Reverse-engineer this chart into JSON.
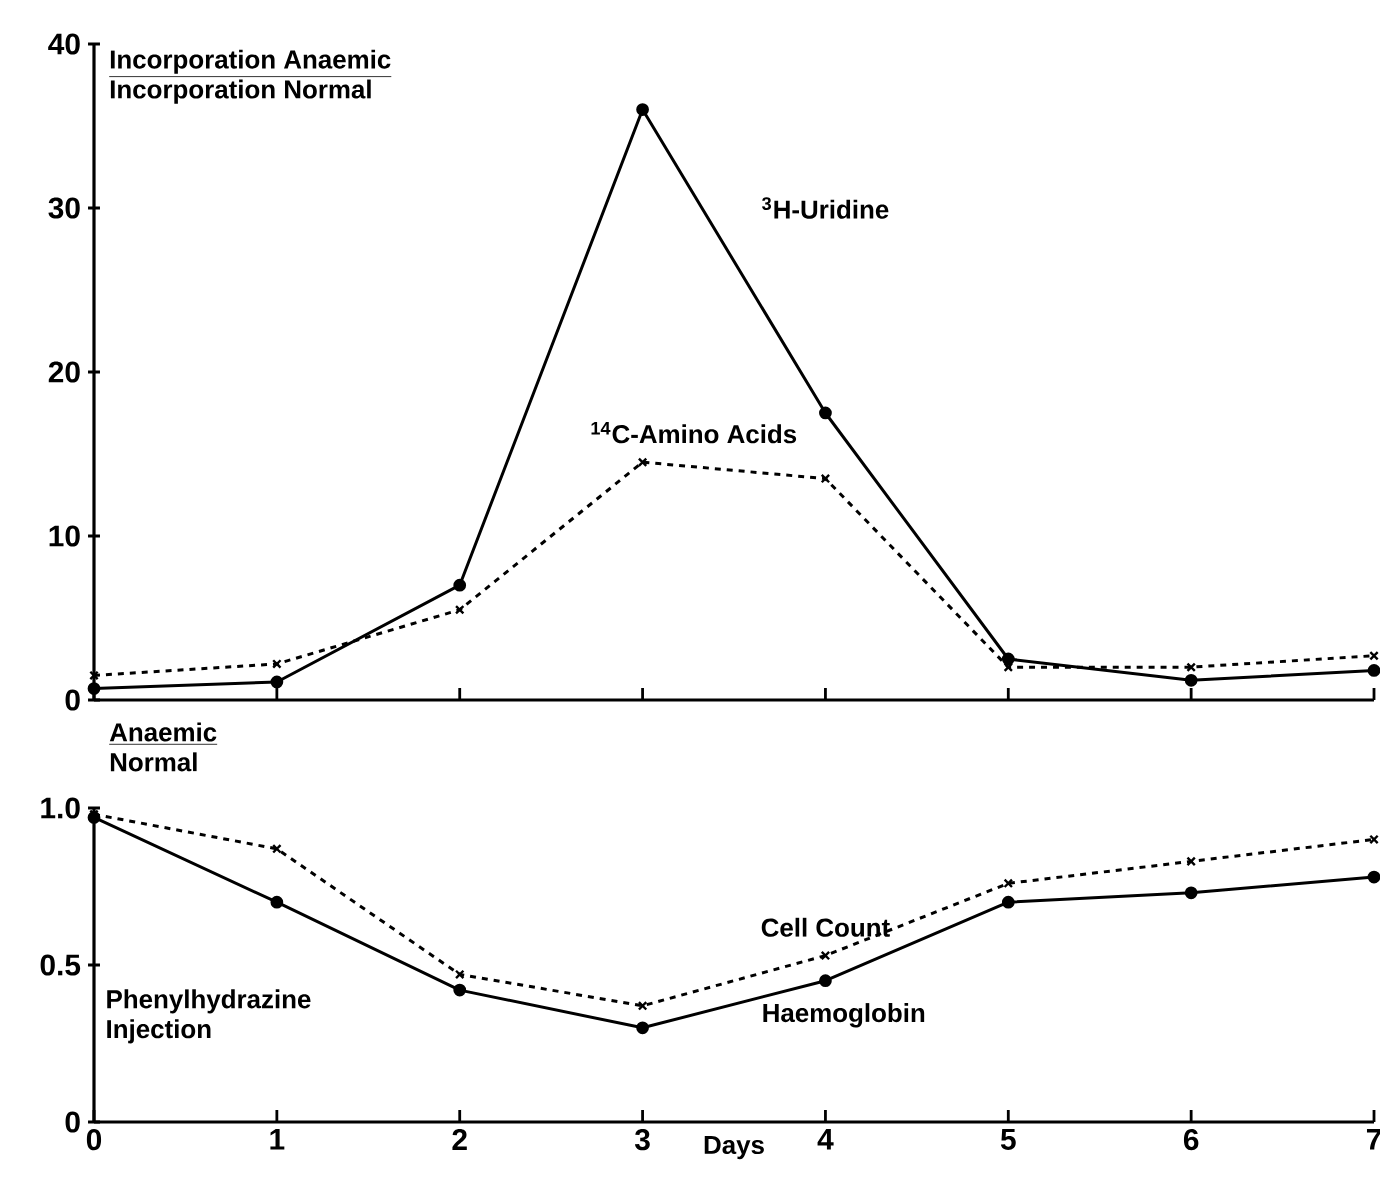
{
  "chart_data": [
    {
      "type": "line",
      "ylabel": "Incorporation Anaemic",
      "annotations": [
        "Incorporation Normal"
      ],
      "xlim": [
        0,
        7
      ],
      "xticks": [
        0,
        1,
        2,
        3,
        4,
        5,
        6,
        7
      ],
      "ylim": [
        0,
        40
      ],
      "yticks": [
        0,
        10,
        20,
        30,
        40
      ],
      "tick_labels": "y",
      "x": [
        0,
        1,
        2,
        3,
        4,
        5,
        6,
        7
      ],
      "grid": false,
      "legend": false,
      "series": [
        {
          "name": "$^{3}$H-Uridine",
          "color": "#000000",
          "marker": "circle",
          "line_style": "solid",
          "values": [
            0.7,
            1.1,
            7,
            36,
            17.5,
            2.5,
            1.2,
            1.8
          ]
        },
        {
          "name": "$^{14}$C-Amino Acids",
          "color": "#000000",
          "marker": "cross",
          "line_style": "dashed",
          "values": [
            1.5,
            2.2,
            5.5,
            14.5,
            13.5,
            2,
            2,
            2.7
          ]
        }
      ]
    },
    {
      "type": "line",
      "ylabel": "Anaemic",
      "xlabel": "Days",
      "annotations": [
        "Normal",
        "Phenylhydrazine Injection"
      ],
      "xlim": [
        0,
        7
      ],
      "xticks": [
        0,
        1,
        2,
        3,
        4,
        5,
        6,
        7
      ],
      "ylim": [
        0,
        1
      ],
      "yticks": [
        0,
        0.5,
        {
          "value": 1,
          "label": "1.0"
        }
      ],
      "x": [
        0,
        1,
        2,
        3,
        4,
        5,
        6,
        7
      ],
      "grid": false,
      "legend": false,
      "series": [
        {
          "name": "Haemoglobin",
          "color": "#000000",
          "marker": "circle",
          "line_style": "solid",
          "values": [
            0.97,
            0.7,
            0.42,
            0.3,
            0.45,
            0.7,
            0.73,
            0.78
          ]
        },
        {
          "name": "Cell Count",
          "color": "#000000",
          "marker": "cross",
          "line_style": "dashed",
          "values": [
            0.98,
            0.87,
            0.47,
            0.37,
            0.53,
            0.76,
            0.83,
            0.9
          ]
        }
      ]
    }
  ]
}
